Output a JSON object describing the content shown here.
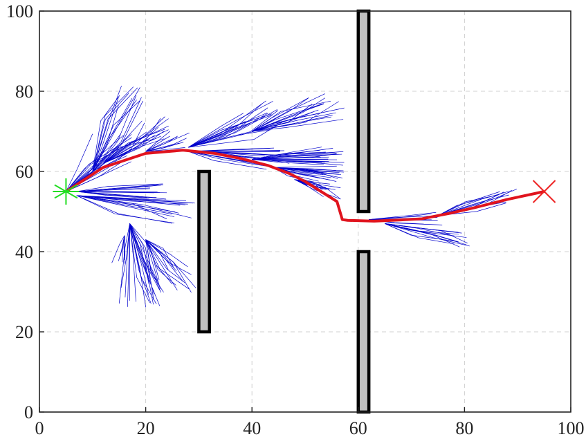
{
  "chart_data": {
    "type": "scatter",
    "title": "",
    "xlabel": "",
    "ylabel": "",
    "xlim": [
      0,
      100
    ],
    "ylim": [
      0,
      100
    ],
    "xticks": [
      "0",
      "20",
      "40",
      "60",
      "80",
      "100"
    ],
    "yticks": [
      "0",
      "20",
      "40",
      "60",
      "80",
      "100"
    ],
    "grid": true,
    "obstacles": [
      {
        "x0": 30,
        "x1": 32,
        "y0": 20,
        "y1": 60
      },
      {
        "x0": 60,
        "x1": 62,
        "y0": 50,
        "y1": 100
      },
      {
        "x0": 60,
        "x1": 62,
        "y0": 0,
        "y1": 40
      }
    ],
    "start": {
      "x": 5,
      "y": 55
    },
    "goal": {
      "x": 95,
      "y": 55
    },
    "path": [
      [
        5,
        55
      ],
      [
        12,
        61
      ],
      [
        20,
        64.5
      ],
      [
        27,
        65.3
      ],
      [
        33,
        64.5
      ],
      [
        38,
        63.2
      ],
      [
        43,
        61.5
      ],
      [
        47,
        59.5
      ],
      [
        50,
        57.5
      ],
      [
        53,
        55
      ],
      [
        56,
        52.5
      ],
      [
        57,
        48
      ],
      [
        58,
        47.8
      ],
      [
        63,
        47.6
      ],
      [
        68,
        47.9
      ],
      [
        72,
        48.2
      ],
      [
        77,
        49.5
      ],
      [
        82,
        51
      ],
      [
        88,
        53
      ],
      [
        95,
        55
      ]
    ],
    "colors": {
      "tree": "#0000cc",
      "path": "#e0141e",
      "start": "#22dd22",
      "goal": "#ee2222",
      "obstacle_fill": "#c0c0c0",
      "obstacle_stroke": "#000000",
      "grid": "#d0d0d0"
    }
  }
}
